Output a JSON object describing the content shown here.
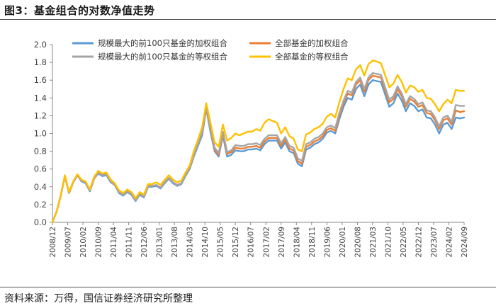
{
  "header": {
    "title": "图3：基金组合的对数净值走势"
  },
  "footer": {
    "source": "资料来源：万得，国信证券经济研究所整理"
  },
  "chart_data": {
    "type": "line",
    "title": "图3：基金组合的对数净值走势",
    "xlabel": "",
    "ylabel": "",
    "ylim": [
      0.0,
      2.0
    ],
    "yticks": [
      "0.0",
      "0.2",
      "0.4",
      "0.6",
      "0.8",
      "1.0",
      "1.2",
      "1.4",
      "1.6",
      "1.8",
      "2.0"
    ],
    "xticks": [
      "2008/12",
      "2009/07",
      "2010/02",
      "2010/09",
      "2011/04",
      "2011/11",
      "2012/06",
      "2013/01",
      "2013/08",
      "2014/03",
      "2014/10",
      "2015/05",
      "2015/12",
      "2016/07",
      "2017/02",
      "2017/09",
      "2018/04",
      "2018/11",
      "2019/06",
      "2020/01",
      "2020/08",
      "2021/03",
      "2021/10",
      "2022/05",
      "2022/12",
      "2023/07",
      "2024/02",
      "2024/09"
    ],
    "legend_position": "top-left",
    "grid": false,
    "x": [
      "2008/12",
      "2009/02",
      "2009/05",
      "2009/07",
      "2009/08",
      "2009/10",
      "2009/12",
      "2010/02",
      "2010/04",
      "2010/06",
      "2010/08",
      "2010/11",
      "2011/01",
      "2011/04",
      "2011/06",
      "2011/08",
      "2011/10",
      "2011/12",
      "2012/02",
      "2012/04",
      "2012/06",
      "2012/08",
      "2012/10",
      "2012/12",
      "2013/02",
      "2013/04",
      "2013/06",
      "2013/08",
      "2013/10",
      "2013/12",
      "2014/02",
      "2014/04",
      "2014/06",
      "2014/08",
      "2014/10",
      "2014/12",
      "2015/02",
      "2015/04",
      "2015/06",
      "2015/07",
      "2015/09",
      "2015/11",
      "2016/01",
      "2016/03",
      "2016/05",
      "2016/07",
      "2016/09",
      "2016/11",
      "2017/01",
      "2017/03",
      "2017/05",
      "2017/07",
      "2017/09",
      "2017/11",
      "2018/01",
      "2018/03",
      "2018/05",
      "2018/07",
      "2018/09",
      "2018/11",
      "2018/12",
      "2019/02",
      "2019/04",
      "2019/06",
      "2019/08",
      "2019/10",
      "2019/12",
      "2020/02",
      "2020/03",
      "2020/05",
      "2020/07",
      "2020/08",
      "2020/10",
      "2020/12",
      "2021/02",
      "2021/03",
      "2021/05",
      "2021/07",
      "2021/09",
      "2021/10",
      "2021/12",
      "2022/02",
      "2022/04",
      "2022/06",
      "2022/08",
      "2022/10",
      "2022/12",
      "2023/02",
      "2023/04",
      "2023/06",
      "2023/08",
      "2023/10",
      "2023/12",
      "2024/02",
      "2024/04",
      "2024/06",
      "2024/08",
      "2024/09",
      "2024/10",
      "2024/11"
    ],
    "series": [
      {
        "name": "规模最大的前100只基金的加权组合",
        "color": "#5b9bd5",
        "values": [
          0.0,
          0.12,
          0.3,
          0.52,
          0.33,
          0.45,
          0.53,
          0.46,
          0.44,
          0.35,
          0.49,
          0.55,
          0.52,
          0.53,
          0.45,
          0.42,
          0.33,
          0.3,
          0.34,
          0.31,
          0.24,
          0.31,
          0.28,
          0.4,
          0.4,
          0.41,
          0.38,
          0.44,
          0.49,
          0.44,
          0.41,
          0.43,
          0.52,
          0.6,
          0.74,
          0.86,
          0.98,
          1.28,
          1.02,
          0.8,
          0.74,
          0.98,
          0.74,
          0.76,
          0.81,
          0.8,
          0.8,
          0.82,
          0.82,
          0.83,
          0.81,
          0.88,
          0.92,
          0.92,
          0.92,
          0.83,
          0.9,
          0.8,
          0.78,
          0.66,
          0.63,
          0.82,
          0.84,
          0.88,
          0.9,
          0.94,
          1.01,
          1.03,
          1.0,
          1.16,
          1.3,
          1.4,
          1.38,
          1.5,
          1.55,
          1.42,
          1.55,
          1.6,
          1.59,
          1.58,
          1.44,
          1.3,
          1.34,
          1.45,
          1.37,
          1.25,
          1.34,
          1.31,
          1.25,
          1.27,
          1.18,
          1.17,
          1.1,
          1.0,
          1.1,
          1.12,
          1.05,
          1.18,
          1.17,
          1.18
        ]
      },
      {
        "name": "全部基金的加权组合",
        "color": "#ed7d31",
        "values": [
          0.0,
          0.12,
          0.3,
          0.52,
          0.33,
          0.45,
          0.53,
          0.47,
          0.45,
          0.36,
          0.49,
          0.56,
          0.53,
          0.54,
          0.46,
          0.42,
          0.34,
          0.31,
          0.35,
          0.32,
          0.25,
          0.32,
          0.29,
          0.41,
          0.41,
          0.42,
          0.39,
          0.45,
          0.5,
          0.45,
          0.42,
          0.44,
          0.53,
          0.61,
          0.76,
          0.88,
          1.01,
          1.29,
          1.05,
          0.82,
          0.76,
          1.0,
          0.77,
          0.79,
          0.84,
          0.83,
          0.83,
          0.85,
          0.85,
          0.86,
          0.84,
          0.91,
          0.95,
          0.95,
          0.95,
          0.86,
          0.93,
          0.83,
          0.81,
          0.69,
          0.66,
          0.85,
          0.87,
          0.91,
          0.93,
          0.97,
          1.04,
          1.06,
          1.03,
          1.2,
          1.34,
          1.45,
          1.43,
          1.55,
          1.6,
          1.47,
          1.6,
          1.65,
          1.64,
          1.63,
          1.49,
          1.35,
          1.39,
          1.5,
          1.42,
          1.3,
          1.39,
          1.36,
          1.3,
          1.32,
          1.23,
          1.22,
          1.15,
          1.05,
          1.15,
          1.17,
          1.1,
          1.26,
          1.24,
          1.25
        ]
      },
      {
        "name": "规模最大的前100只基金的等权组合",
        "color": "#a5a5a5",
        "values": [
          0.0,
          0.12,
          0.3,
          0.52,
          0.33,
          0.45,
          0.53,
          0.47,
          0.45,
          0.36,
          0.5,
          0.56,
          0.53,
          0.54,
          0.46,
          0.42,
          0.34,
          0.31,
          0.35,
          0.32,
          0.25,
          0.32,
          0.29,
          0.41,
          0.41,
          0.42,
          0.39,
          0.45,
          0.5,
          0.45,
          0.42,
          0.44,
          0.53,
          0.61,
          0.76,
          0.88,
          1.02,
          1.3,
          1.06,
          0.84,
          0.78,
          1.02,
          0.79,
          0.81,
          0.87,
          0.86,
          0.86,
          0.88,
          0.88,
          0.89,
          0.87,
          0.94,
          0.98,
          0.98,
          0.98,
          0.89,
          0.96,
          0.86,
          0.84,
          0.72,
          0.69,
          0.88,
          0.9,
          0.94,
          0.96,
          1.0,
          1.07,
          1.09,
          1.06,
          1.23,
          1.37,
          1.48,
          1.46,
          1.58,
          1.63,
          1.5,
          1.63,
          1.68,
          1.67,
          1.66,
          1.52,
          1.38,
          1.42,
          1.53,
          1.45,
          1.33,
          1.42,
          1.39,
          1.33,
          1.35,
          1.26,
          1.25,
          1.18,
          1.08,
          1.18,
          1.2,
          1.13,
          1.32,
          1.31,
          1.31
        ]
      },
      {
        "name": "全部基金的等权组合",
        "color": "#ffc000",
        "values": [
          0.0,
          0.12,
          0.3,
          0.53,
          0.34,
          0.46,
          0.54,
          0.48,
          0.46,
          0.37,
          0.51,
          0.58,
          0.55,
          0.56,
          0.48,
          0.44,
          0.36,
          0.33,
          0.37,
          0.34,
          0.27,
          0.34,
          0.31,
          0.43,
          0.43,
          0.45,
          0.42,
          0.48,
          0.53,
          0.48,
          0.45,
          0.47,
          0.56,
          0.64,
          0.8,
          0.93,
          1.07,
          1.34,
          1.12,
          0.9,
          0.85,
          1.1,
          0.92,
          0.95,
          1.0,
          0.98,
          1.0,
          1.02,
          1.02,
          1.05,
          1.03,
          1.12,
          1.16,
          1.14,
          1.12,
          1.0,
          1.07,
          0.97,
          0.94,
          0.82,
          0.8,
          0.99,
          1.01,
          1.05,
          1.07,
          1.11,
          1.19,
          1.22,
          1.18,
          1.35,
          1.5,
          1.62,
          1.6,
          1.72,
          1.77,
          1.65,
          1.78,
          1.82,
          1.81,
          1.79,
          1.66,
          1.52,
          1.56,
          1.66,
          1.58,
          1.46,
          1.54,
          1.52,
          1.47,
          1.49,
          1.4,
          1.39,
          1.33,
          1.25,
          1.33,
          1.38,
          1.34,
          1.49,
          1.48,
          1.48
        ]
      }
    ]
  }
}
